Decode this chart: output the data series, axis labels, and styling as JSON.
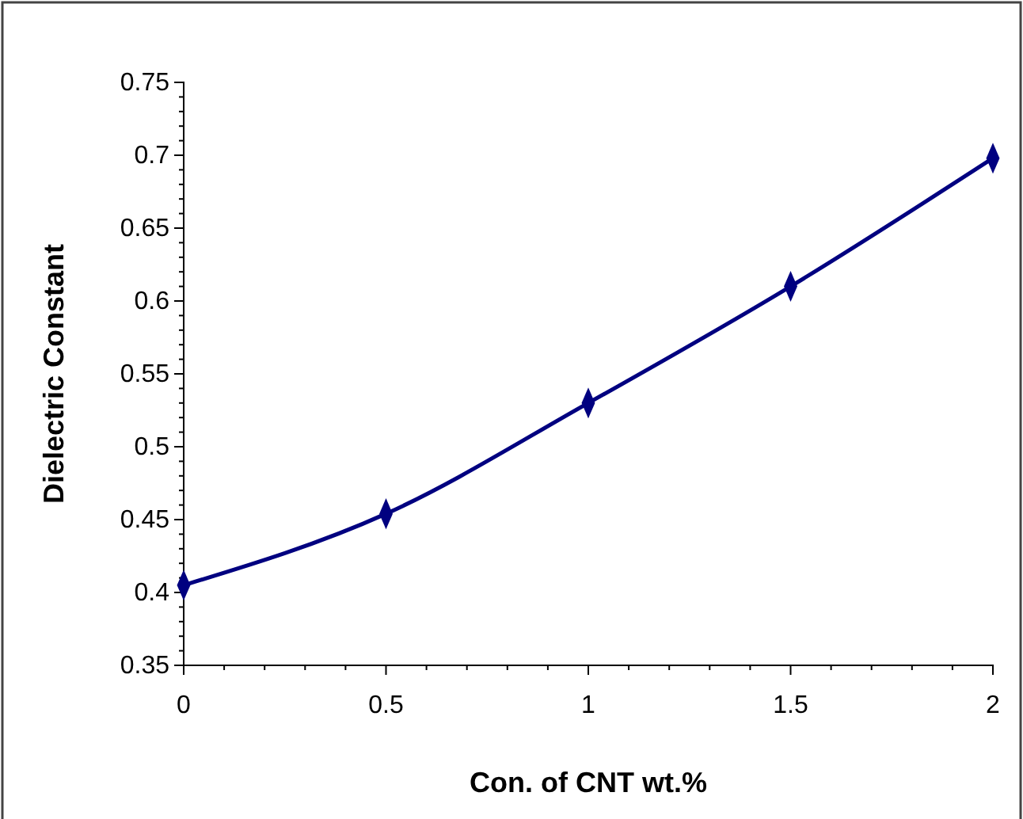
{
  "chart_data": {
    "type": "line",
    "xlabel": "Con. of CNT wt.%",
    "ylabel": "Dielectric Constant",
    "x": [
      0,
      0.5,
      1,
      1.5,
      2
    ],
    "series": [
      {
        "color": "#000080",
        "values": [
          0.405,
          0.454,
          0.53,
          0.61,
          0.698
        ]
      }
    ],
    "xlim": [
      0,
      2
    ],
    "xticks": [
      0,
      0.5,
      1,
      1.5,
      2
    ],
    "ylim": [
      0.35,
      0.75
    ],
    "yticks": [
      0.35,
      0.4,
      0.45,
      0.5,
      0.55,
      0.6,
      0.65,
      0.7,
      0.75
    ],
    "marker": "diamond",
    "line_style": "solid",
    "grid": false
  }
}
